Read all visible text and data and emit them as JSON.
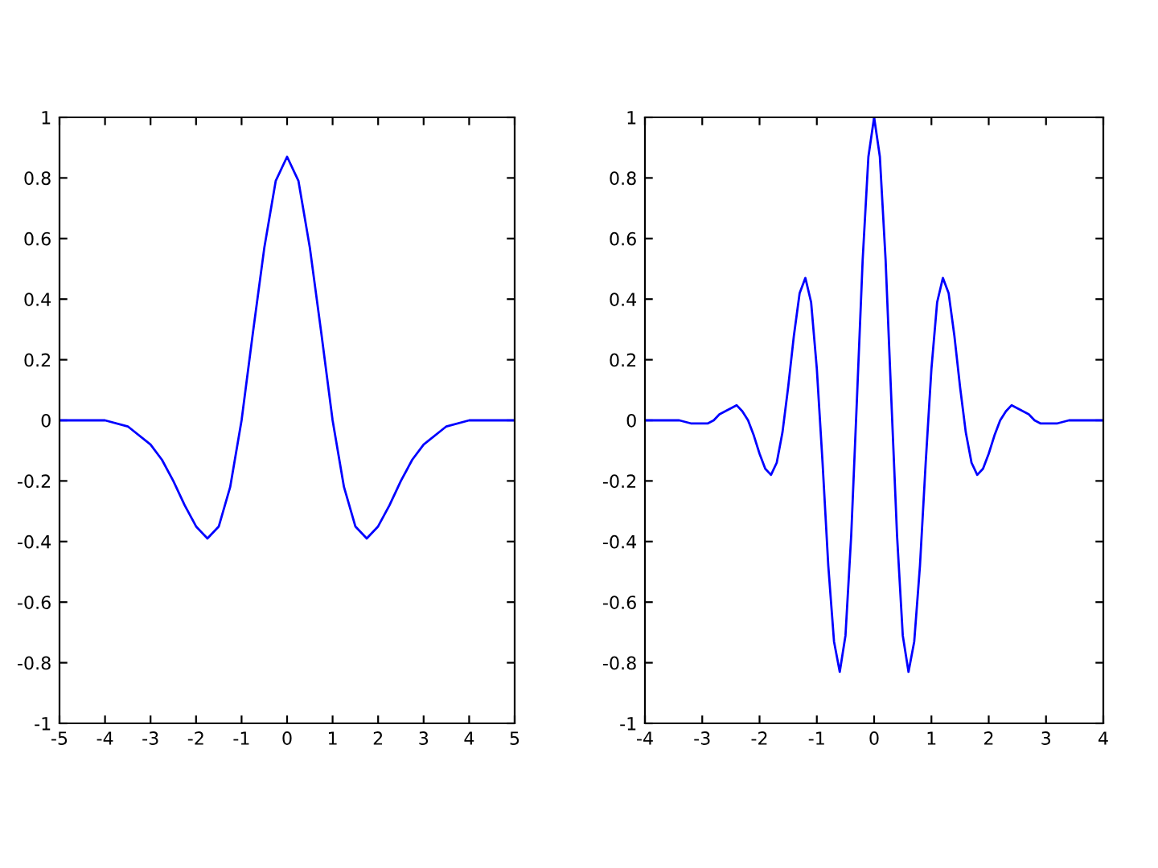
{
  "chart_data": [
    {
      "type": "line",
      "x": [
        -5,
        -4.5,
        -4,
        -3.5,
        -3,
        -2.75,
        -2.5,
        -2.25,
        -2,
        -1.75,
        -1.5,
        -1.25,
        -1,
        -0.75,
        -0.5,
        -0.25,
        0,
        0.25,
        0.5,
        0.75,
        1,
        1.25,
        1.5,
        1.75,
        2,
        2.25,
        2.5,
        2.75,
        3,
        3.5,
        4,
        4.5,
        5
      ],
      "series": [
        {
          "color": "#0000ff",
          "values": [
            0,
            0,
            0,
            -0.02,
            -0.08,
            -0.13,
            -0.2,
            -0.28,
            -0.35,
            -0.39,
            -0.35,
            -0.22,
            0,
            0.29,
            0.57,
            0.79,
            0.87,
            0.79,
            0.57,
            0.29,
            0,
            -0.22,
            -0.35,
            -0.39,
            -0.35,
            -0.28,
            -0.2,
            -0.13,
            -0.08,
            -0.02,
            0,
            0,
            0
          ]
        }
      ],
      "xlim": [
        -5,
        5
      ],
      "xticks": [
        -5,
        -4,
        -3,
        -2,
        -1,
        0,
        1,
        2,
        3,
        4,
        5
      ],
      "ylim": [
        -1,
        1
      ],
      "yticks": [
        -1,
        -0.8,
        -0.6,
        -0.4,
        -0.2,
        0,
        0.2,
        0.4,
        0.6,
        0.8,
        1
      ],
      "grid": false,
      "line_style": "solid"
    },
    {
      "type": "line",
      "x": [
        -4,
        -3.6,
        -3.4,
        -3.2,
        -3,
        -2.9,
        -2.8,
        -2.7,
        -2.6,
        -2.5,
        -2.4,
        -2.3,
        -2.2,
        -2.1,
        -2,
        -1.9,
        -1.8,
        -1.7,
        -1.6,
        -1.5,
        -1.4,
        -1.3,
        -1.2,
        -1.1,
        -1,
        -0.9,
        -0.8,
        -0.7,
        -0.6,
        -0.5,
        -0.4,
        -0.3,
        -0.2,
        -0.1,
        0,
        0.1,
        0.2,
        0.3,
        0.4,
        0.5,
        0.6,
        0.7,
        0.8,
        0.9,
        1,
        1.1,
        1.2,
        1.3,
        1.4,
        1.5,
        1.6,
        1.7,
        1.8,
        1.9,
        2,
        2.1,
        2.2,
        2.3,
        2.4,
        2.5,
        2.6,
        2.7,
        2.8,
        2.9,
        3,
        3.2,
        3.4,
        3.6,
        4
      ],
      "series": [
        {
          "color": "#0000ff",
          "values": [
            0,
            0,
            0,
            -0.01,
            -0.01,
            -0.01,
            0,
            0.02,
            0.03,
            0.04,
            0.05,
            0.03,
            0,
            -0.05,
            -0.11,
            -0.16,
            -0.18,
            -0.14,
            -0.04,
            0.11,
            0.28,
            0.42,
            0.47,
            0.39,
            0.17,
            -0.14,
            -0.48,
            -0.73,
            -0.83,
            -0.71,
            -0.38,
            0.07,
            0.53,
            0.87,
            1,
            0.87,
            0.53,
            0.07,
            -0.38,
            -0.71,
            -0.83,
            -0.73,
            -0.48,
            -0.14,
            0.17,
            0.39,
            0.47,
            0.42,
            0.28,
            0.11,
            -0.04,
            -0.14,
            -0.18,
            -0.16,
            -0.11,
            -0.05,
            0,
            0.03,
            0.05,
            0.04,
            0.03,
            0.02,
            0,
            -0.01,
            -0.01,
            -0.01,
            0,
            0,
            0
          ]
        }
      ],
      "xlim": [
        -4,
        4
      ],
      "xticks": [
        -4,
        -3,
        -2,
        -1,
        0,
        1,
        2,
        3,
        4
      ],
      "ylim": [
        -1,
        1
      ],
      "yticks": [
        -1,
        -0.8,
        -0.6,
        -0.4,
        -0.2,
        0,
        0.2,
        0.4,
        0.6,
        0.8,
        1
      ],
      "grid": false,
      "line_style": "solid"
    }
  ]
}
